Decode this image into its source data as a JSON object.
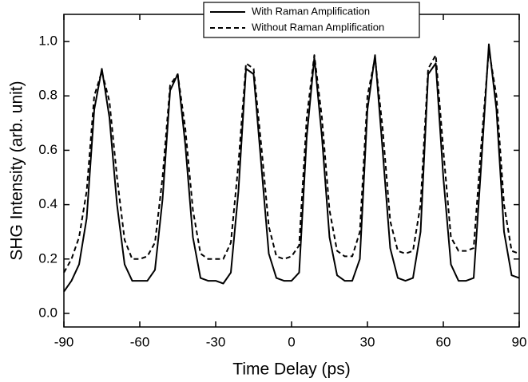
{
  "chart_data": {
    "type": "line",
    "x_label": "Time Delay (ps)",
    "y_label": "SHG Intensity (arb. unit)",
    "x": [
      -90,
      -87,
      -84,
      -81,
      -78,
      -75,
      -72,
      -69,
      -66,
      -63,
      -60,
      -57,
      -54,
      -51,
      -48,
      -45,
      -42,
      -39,
      -36,
      -33,
      -30,
      -27,
      -24,
      -21,
      -18,
      -15,
      -12,
      -9,
      -6,
      -3,
      0,
      3,
      6,
      9,
      12,
      15,
      18,
      21,
      24,
      27,
      30,
      33,
      36,
      39,
      42,
      45,
      48,
      51,
      54,
      57,
      60,
      63,
      66,
      69,
      72,
      75,
      78,
      81,
      84,
      87,
      90
    ],
    "series": [
      {
        "name": "With Raman Amplification",
        "color": "#000000",
        "linestyle": "solid",
        "values": [
          0.08,
          0.12,
          0.18,
          0.35,
          0.75,
          0.9,
          0.72,
          0.4,
          0.18,
          0.12,
          0.12,
          0.12,
          0.16,
          0.42,
          0.82,
          0.88,
          0.62,
          0.28,
          0.13,
          0.12,
          0.12,
          0.11,
          0.15,
          0.45,
          0.9,
          0.88,
          0.55,
          0.22,
          0.13,
          0.12,
          0.12,
          0.15,
          0.65,
          0.94,
          0.65,
          0.28,
          0.14,
          0.12,
          0.12,
          0.2,
          0.75,
          0.95,
          0.6,
          0.24,
          0.13,
          0.12,
          0.13,
          0.3,
          0.88,
          0.92,
          0.5,
          0.18,
          0.12,
          0.12,
          0.13,
          0.55,
          0.99,
          0.75,
          0.3,
          0.14,
          0.13
        ]
      },
      {
        "name": "Without Raman Amplification",
        "color": "#000000",
        "linestyle": "dashed",
        "values": [
          0.15,
          0.2,
          0.28,
          0.45,
          0.8,
          0.89,
          0.78,
          0.5,
          0.27,
          0.2,
          0.2,
          0.21,
          0.26,
          0.5,
          0.84,
          0.88,
          0.68,
          0.38,
          0.22,
          0.2,
          0.2,
          0.2,
          0.26,
          0.55,
          0.92,
          0.9,
          0.62,
          0.32,
          0.21,
          0.2,
          0.21,
          0.25,
          0.72,
          0.95,
          0.72,
          0.38,
          0.23,
          0.21,
          0.21,
          0.3,
          0.8,
          0.94,
          0.68,
          0.34,
          0.23,
          0.22,
          0.23,
          0.4,
          0.9,
          0.95,
          0.6,
          0.28,
          0.23,
          0.23,
          0.24,
          0.62,
          0.97,
          0.8,
          0.4,
          0.23,
          0.22
        ]
      }
    ],
    "xlim": [
      -90,
      90
    ],
    "xticks": [
      -90,
      -60,
      -30,
      0,
      30,
      60,
      90
    ],
    "ylim": [
      -0.05,
      1.1
    ],
    "yticks": [
      {
        "value": 0,
        "label": "0.0"
      },
      0.2,
      0.4,
      0.6,
      0.8,
      {
        "value": 1,
        "label": "1.0"
      }
    ],
    "legend": "upper center"
  }
}
